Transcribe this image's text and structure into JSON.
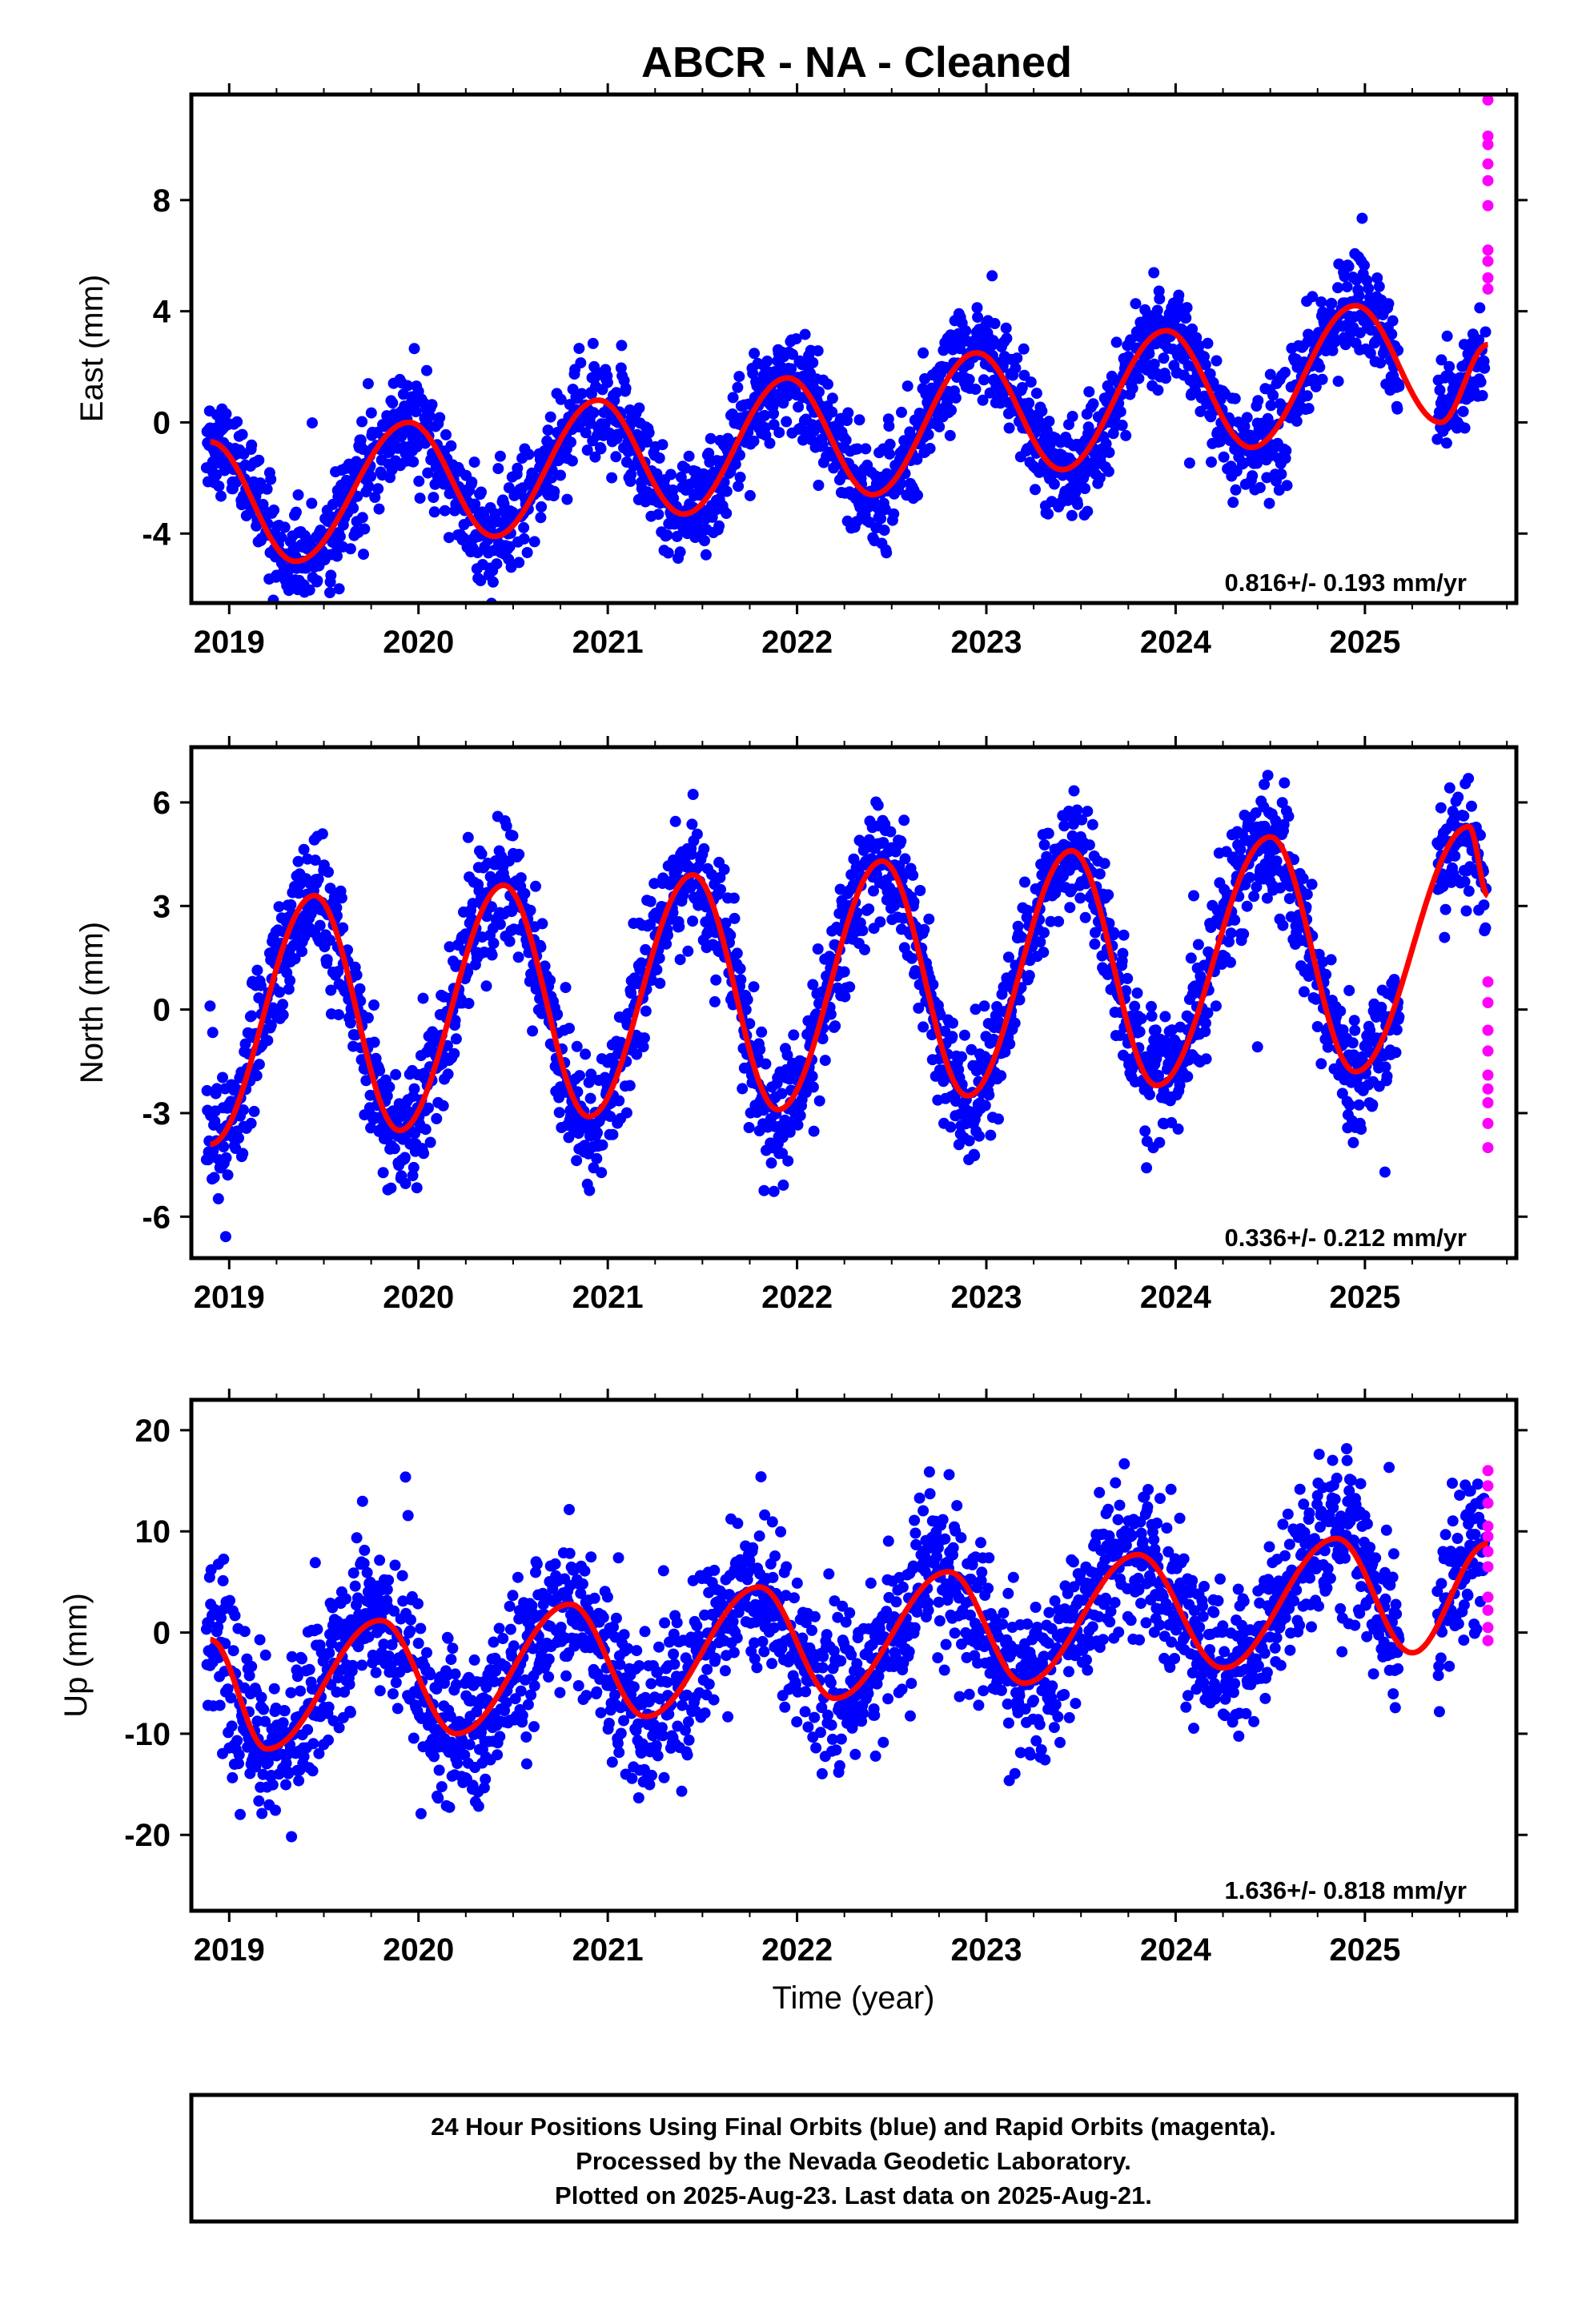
{
  "title": "ABCR  - NA - Cleaned",
  "x_axis_label": "Time (year)",
  "rate_labels": {
    "east": "0.816+/- 0.193 mm/yr",
    "north": "0.336+/- 0.212 mm/yr",
    "up": "1.636+/- 0.818 mm/yr"
  },
  "footer": {
    "line1": "24 Hour Positions Using Final Orbits (blue) and Rapid Orbits (magenta).",
    "line2": "Processed by the Nevada Geodetic Laboratory.",
    "line3": "Plotted on 2025-Aug-23. Last data on 2025-Aug-21."
  },
  "colors": {
    "final_orbits": "#0000ff",
    "rapid_orbits": "#ff00ff",
    "model_fit": "#ff0000",
    "frame": "#000000"
  },
  "chart_data": [
    {
      "type": "scatter",
      "component": "east",
      "ylabel": "East (mm)",
      "xlim": [
        2018.8,
        2025.8
      ],
      "ylim": [
        -6.5,
        11.8
      ],
      "x_ticks": [
        "2019",
        "2020",
        "2021",
        "2022",
        "2023",
        "2024",
        "2025"
      ],
      "y_ticks": [
        "-4",
        "0",
        "4",
        "8"
      ],
      "y_tick_values": [
        -4,
        0,
        4,
        8
      ],
      "data_span": [
        2018.88,
        2025.64
      ],
      "fit": {
        "rate": 0.816,
        "offset": -1.9,
        "annual_amplitude": 2.2,
        "annual_phase_year": 2019.87,
        "semiannual_amplitude": 0.45,
        "semiannual_phase_year": 2019.62
      },
      "fit_anchor_points": [
        {
          "x": 2018.9,
          "y": -0.7
        },
        {
          "x": 2019.35,
          "y": -5.0
        },
        {
          "x": 2019.95,
          "y": 0.0
        },
        {
          "x": 2020.4,
          "y": -4.1
        },
        {
          "x": 2020.95,
          "y": 0.8
        },
        {
          "x": 2021.4,
          "y": -3.3
        },
        {
          "x": 2021.95,
          "y": 1.6
        },
        {
          "x": 2022.4,
          "y": -2.6
        },
        {
          "x": 2022.95,
          "y": 2.5
        },
        {
          "x": 2023.4,
          "y": -1.7
        },
        {
          "x": 2023.95,
          "y": 3.3
        },
        {
          "x": 2024.4,
          "y": -0.9
        },
        {
          "x": 2024.95,
          "y": 4.2
        },
        {
          "x": 2025.4,
          "y": 0.0
        },
        {
          "x": 2025.65,
          "y": 2.8
        }
      ],
      "scatter_sd": 0.9,
      "rapid_points": [
        {
          "x": 2025.65,
          "y": 11.6
        },
        {
          "x": 2025.65,
          "y": 10.3
        },
        {
          "x": 2025.65,
          "y": 10.0
        },
        {
          "x": 2025.65,
          "y": 9.3
        },
        {
          "x": 2025.65,
          "y": 8.7
        },
        {
          "x": 2025.65,
          "y": 7.8
        },
        {
          "x": 2025.65,
          "y": 6.2
        },
        {
          "x": 2025.65,
          "y": 5.8
        },
        {
          "x": 2025.65,
          "y": 5.2
        },
        {
          "x": 2025.65,
          "y": 4.8
        }
      ]
    },
    {
      "type": "scatter",
      "component": "north",
      "ylabel": "North (mm)",
      "xlim": [
        2018.8,
        2025.8
      ],
      "ylim": [
        -7.2,
        7.6
      ],
      "x_ticks": [
        "2019",
        "2020",
        "2021",
        "2022",
        "2023",
        "2024",
        "2025"
      ],
      "y_ticks": [
        "-6",
        "-3",
        "0",
        "3",
        "6"
      ],
      "y_tick_values": [
        -6,
        -3,
        0,
        3,
        6
      ],
      "data_span": [
        2018.88,
        2025.64
      ],
      "fit_anchor_points": [
        {
          "x": 2018.9,
          "y": -3.9
        },
        {
          "x": 2019.45,
          "y": 3.3
        },
        {
          "x": 2019.9,
          "y": -3.5
        },
        {
          "x": 2020.45,
          "y": 3.6
        },
        {
          "x": 2020.9,
          "y": -3.1
        },
        {
          "x": 2021.45,
          "y": 3.9
        },
        {
          "x": 2021.9,
          "y": -2.9
        },
        {
          "x": 2022.45,
          "y": 4.3
        },
        {
          "x": 2022.9,
          "y": -2.5
        },
        {
          "x": 2023.45,
          "y": 4.6
        },
        {
          "x": 2023.9,
          "y": -2.2
        },
        {
          "x": 2024.5,
          "y": 5.0
        },
        {
          "x": 2024.95,
          "y": -1.8
        },
        {
          "x": 2025.55,
          "y": 5.3
        },
        {
          "x": 2025.65,
          "y": 3.3
        }
      ],
      "scatter_sd": 0.9,
      "rapid_points": [
        {
          "x": 2025.65,
          "y": 0.8
        },
        {
          "x": 2025.65,
          "y": 0.2
        },
        {
          "x": 2025.65,
          "y": -0.6
        },
        {
          "x": 2025.65,
          "y": -1.2
        },
        {
          "x": 2025.65,
          "y": -1.9
        },
        {
          "x": 2025.65,
          "y": -2.3
        },
        {
          "x": 2025.65,
          "y": -2.7
        },
        {
          "x": 2025.65,
          "y": -3.3
        },
        {
          "x": 2025.65,
          "y": -4.0
        }
      ]
    },
    {
      "type": "scatter",
      "component": "up",
      "ylabel": "Up (mm)",
      "xlim": [
        2018.8,
        2025.8
      ],
      "ylim": [
        -27.5,
        23.0
      ],
      "x_ticks": [
        "2019",
        "2020",
        "2021",
        "2022",
        "2023",
        "2024",
        "2025"
      ],
      "y_ticks": [
        "-20",
        "-10",
        "0",
        "10",
        "20"
      ],
      "y_tick_values": [
        -20,
        -10,
        0,
        10,
        20
      ],
      "data_span": [
        2018.88,
        2025.64
      ],
      "fit_anchor_points": [
        {
          "x": 2018.9,
          "y": -0.7
        },
        {
          "x": 2019.2,
          "y": -11.5
        },
        {
          "x": 2019.8,
          "y": 1.2
        },
        {
          "x": 2020.2,
          "y": -10.0
        },
        {
          "x": 2020.8,
          "y": 2.8
        },
        {
          "x": 2021.2,
          "y": -8.3
        },
        {
          "x": 2021.8,
          "y": 4.5
        },
        {
          "x": 2022.2,
          "y": -6.5
        },
        {
          "x": 2022.8,
          "y": 6.0
        },
        {
          "x": 2023.2,
          "y": -5.0
        },
        {
          "x": 2023.8,
          "y": 7.7
        },
        {
          "x": 2024.25,
          "y": -3.5
        },
        {
          "x": 2024.85,
          "y": 9.3
        },
        {
          "x": 2025.25,
          "y": -2.0
        },
        {
          "x": 2025.65,
          "y": 8.8
        }
      ],
      "scatter_sd": 3.8,
      "rapid_points": [
        {
          "x": 2025.65,
          "y": 16.0
        },
        {
          "x": 2025.65,
          "y": 14.5
        },
        {
          "x": 2025.65,
          "y": 12.8
        },
        {
          "x": 2025.65,
          "y": 10.5
        },
        {
          "x": 2025.65,
          "y": 9.5
        },
        {
          "x": 2025.65,
          "y": 8.0
        },
        {
          "x": 2025.65,
          "y": 6.5
        },
        {
          "x": 2025.65,
          "y": 3.5
        },
        {
          "x": 2025.65,
          "y": 2.2
        },
        {
          "x": 2025.65,
          "y": 0.5
        },
        {
          "x": 2025.65,
          "y": -0.8
        }
      ]
    }
  ]
}
